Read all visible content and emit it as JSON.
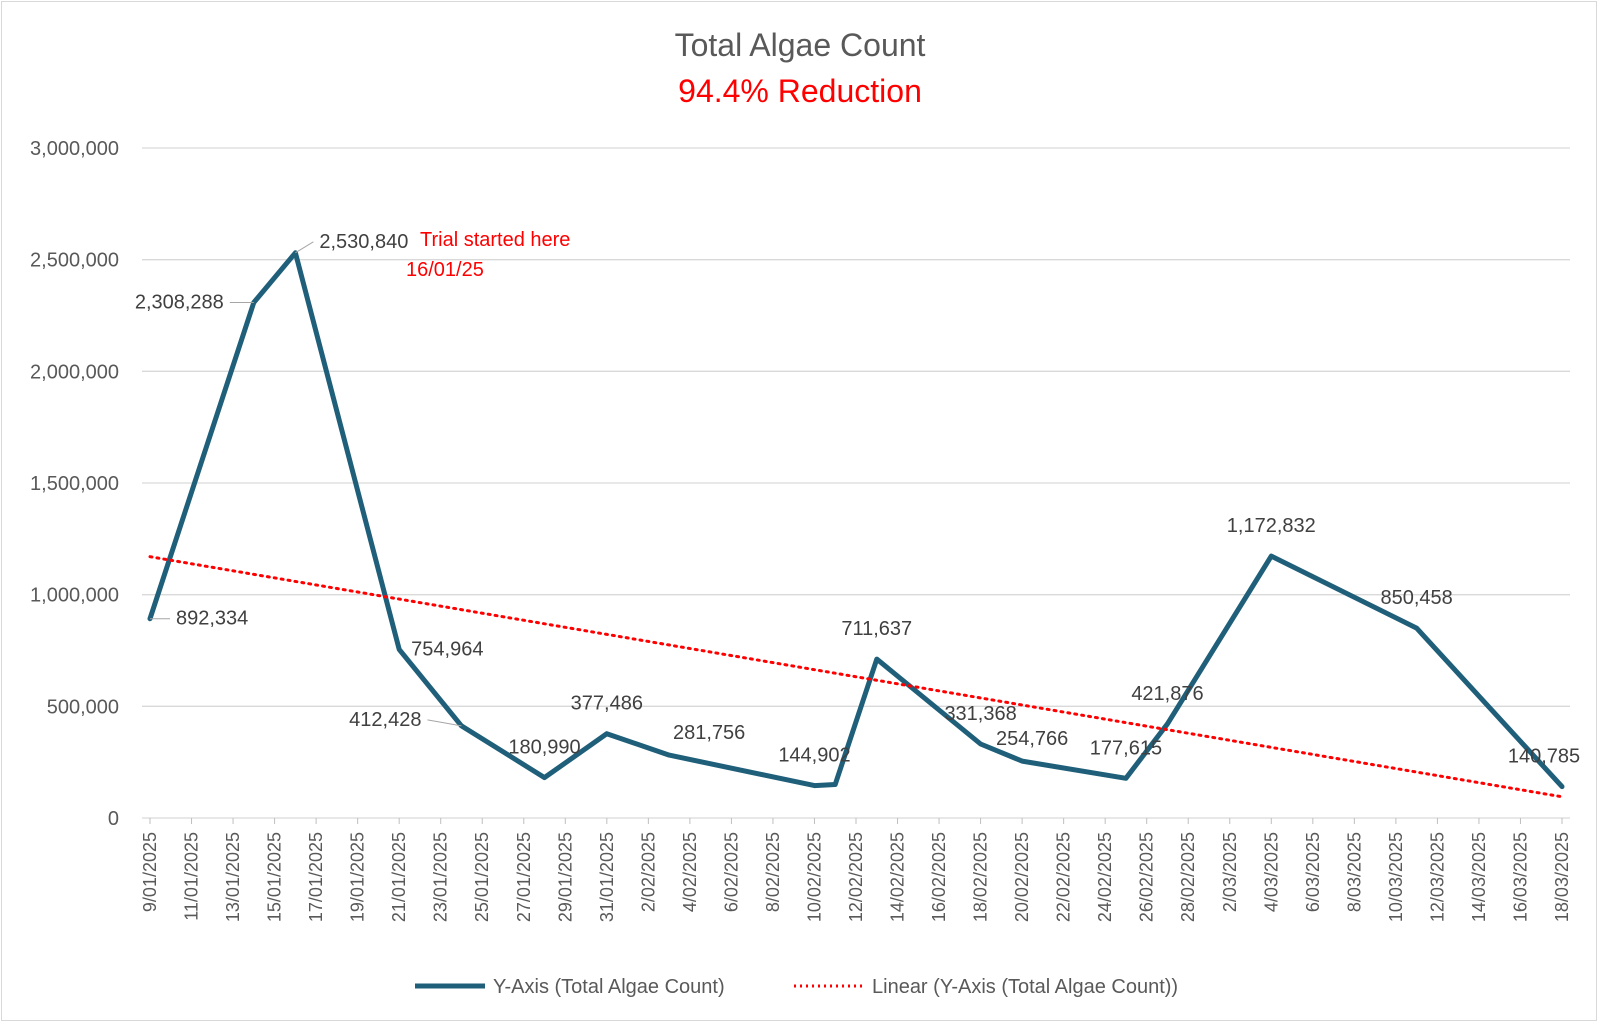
{
  "chart_data": {
    "type": "line",
    "title": "Total Algae Count",
    "subtitle": "94.4% Reduction",
    "xlabel": "",
    "ylabel": "",
    "ylim": [
      0,
      3000000
    ],
    "y_ticks": [
      0,
      500000,
      1000000,
      1500000,
      2000000,
      2500000,
      3000000
    ],
    "y_tick_labels": [
      "0",
      "500,000",
      "1,000,000",
      "1,500,000",
      "2,000,000",
      "2,500,000",
      "3,000,000"
    ],
    "x_axis_type": "date",
    "x_range": [
      "2025-01-09",
      "2025-03-18"
    ],
    "x_tick_labels": [
      "9/01/2025",
      "11/01/2025",
      "13/01/2025",
      "15/01/2025",
      "17/01/2025",
      "19/01/2025",
      "21/01/2025",
      "23/01/2025",
      "25/01/2025",
      "27/01/2025",
      "29/01/2025",
      "31/01/2025",
      "2/02/2025",
      "4/02/2025",
      "6/02/2025",
      "8/02/2025",
      "10/02/2025",
      "12/02/2025",
      "14/02/2025",
      "16/02/2025",
      "18/02/2025",
      "20/02/2025",
      "22/02/2025",
      "24/02/2025",
      "26/02/2025",
      "28/02/2025",
      "2/03/2025",
      "4/03/2025",
      "6/03/2025",
      "8/03/2025",
      "10/03/2025",
      "12/03/2025",
      "14/03/2025",
      "16/03/2025",
      "18/03/2025"
    ],
    "grid": true,
    "legend_position": "bottom",
    "series": [
      {
        "name": "Y-Axis (Total Algae Count)",
        "color": "#1f5f7a",
        "points": [
          {
            "x": "2025-01-09",
            "y": 892334,
            "label": "892,334"
          },
          {
            "x": "2025-01-14",
            "y": 2308288,
            "label": "2,308,288"
          },
          {
            "x": "2025-01-16",
            "y": 2530840,
            "label": "2,530,840"
          },
          {
            "x": "2025-01-21",
            "y": 754964,
            "label": "754,964"
          },
          {
            "x": "2025-01-24",
            "y": 412428,
            "label": "412,428"
          },
          {
            "x": "2025-01-28",
            "y": 180990,
            "label": "180,990"
          },
          {
            "x": "2025-01-31",
            "y": 377486,
            "label": "377,486"
          },
          {
            "x": "2025-02-03",
            "y": 281756,
            "label": "281,756"
          },
          {
            "x": "2025-02-10",
            "y": 144902,
            "label": "144,902"
          },
          {
            "x": "2025-02-11",
            "y": 150000,
            "label": ""
          },
          {
            "x": "2025-02-13",
            "y": 711637,
            "label": "711,637"
          },
          {
            "x": "2025-02-18",
            "y": 331368,
            "label": "331,368"
          },
          {
            "x": "2025-02-20",
            "y": 254766,
            "label": "254,766"
          },
          {
            "x": "2025-02-25",
            "y": 177615,
            "label": "177,615"
          },
          {
            "x": "2025-02-27",
            "y": 421876,
            "label": "421,876"
          },
          {
            "x": "2025-03-04",
            "y": 1172832,
            "label": "1,172,832"
          },
          {
            "x": "2025-03-11",
            "y": 850458,
            "label": "850,458"
          },
          {
            "x": "2025-03-18",
            "y": 140785,
            "label": "140,785"
          }
        ]
      },
      {
        "name": "Linear (Y-Axis (Total Algae Count))",
        "color": "#ff0000",
        "style": "dotted",
        "trend_start": {
          "x": "2025-01-09",
          "y": 1170000
        },
        "trend_end": {
          "x": "2025-03-18",
          "y": 95000
        }
      }
    ],
    "annotations": [
      {
        "text": "Trial started here",
        "x": "2025-01-16",
        "color": "#ff0000"
      },
      {
        "text": "16/01/25",
        "x": "2025-01-16",
        "color": "#ff0000"
      }
    ]
  }
}
